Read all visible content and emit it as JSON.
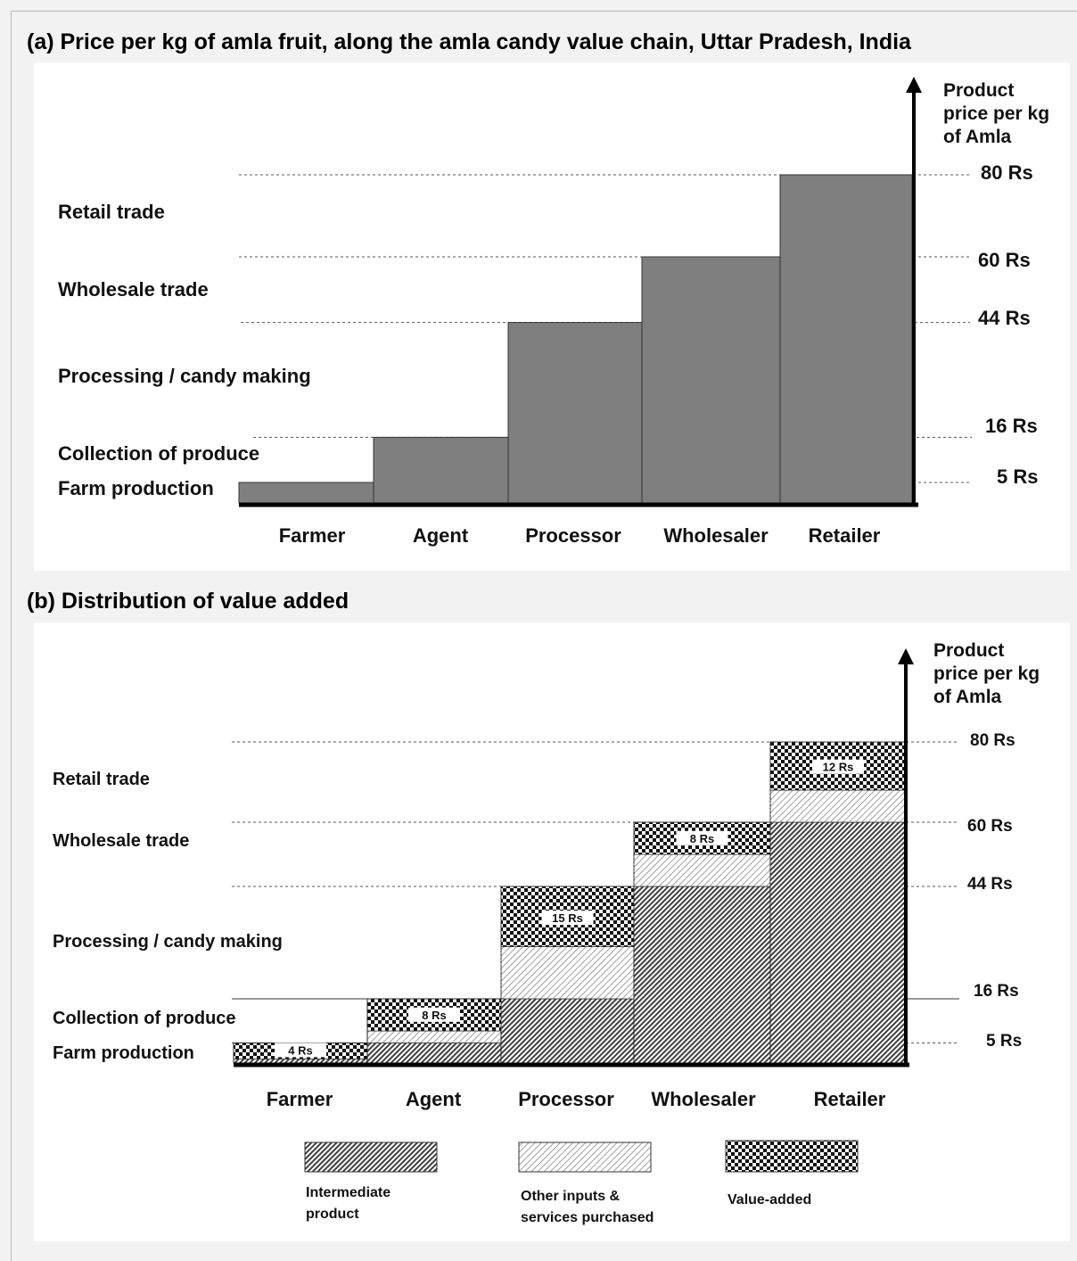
{
  "chart_data": [
    {
      "type": "bar",
      "title": "(a) Price per kg of amla fruit, along the amla candy value chain, Uttar Pradesh, India",
      "ylabel": [
        "Product",
        "price per kg",
        "of Amla"
      ],
      "categories": [
        "Farmer",
        "Agent",
        "Processor",
        "Wholesaler",
        "Retailer"
      ],
      "values": [
        5,
        16,
        44,
        60,
        80
      ],
      "price_labels": [
        "5 Rs",
        "16 Rs",
        "44 Rs",
        "60 Rs",
        "80 Rs"
      ],
      "stages": [
        "Farm production",
        "Collection of produce",
        "Processing / candy making",
        "Wholesale trade",
        "Retail trade"
      ],
      "ylim": [
        0,
        80
      ],
      "bar_color": "#7f7f7f"
    },
    {
      "type": "bar",
      "stacked": true,
      "title": "(b) Distribution of value added",
      "ylabel": [
        "Product",
        "price per kg",
        "of Amla"
      ],
      "categories": [
        "Farmer",
        "Agent",
        "Processor",
        "Wholesaler",
        "Retailer"
      ],
      "price_labels": [
        "5 Rs",
        "16 Rs",
        "44 Rs",
        "60 Rs",
        "80 Rs"
      ],
      "price_levels": [
        5,
        16,
        44,
        60,
        80
      ],
      "stages": [
        "Farm production",
        "Collection of produce",
        "Processing / candy making",
        "Wholesale trade",
        "Retail trade"
      ],
      "ylim": [
        0,
        80
      ],
      "series": [
        {
          "name": "Intermediate product",
          "pattern": "diagonal",
          "values": [
            1,
            5,
            16,
            44,
            60
          ]
        },
        {
          "name": "Other inputs & services purchased",
          "pattern": "light-diagonal",
          "values": [
            0,
            3,
            13,
            8,
            8
          ]
        },
        {
          "name": "Value-added",
          "pattern": "checker",
          "values": [
            4,
            8,
            15,
            8,
            12
          ]
        }
      ],
      "value_added_labels": [
        "4 Rs",
        "8 Rs",
        "15 Rs",
        "8 Rs",
        "12 Rs"
      ],
      "legend": [
        "Intermediate",
        "product",
        "Other inputs &",
        "services purchased",
        "Value-added"
      ]
    }
  ]
}
